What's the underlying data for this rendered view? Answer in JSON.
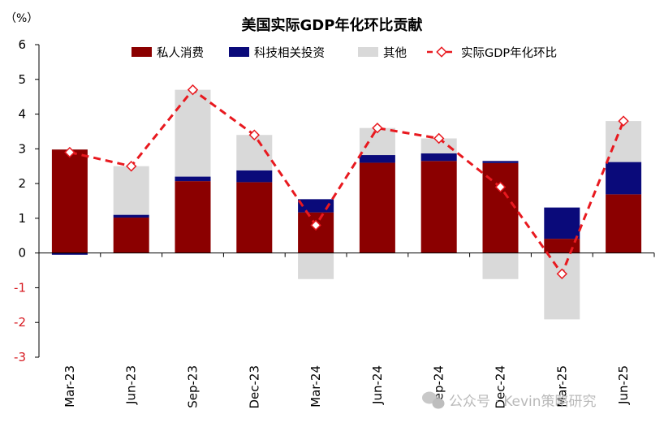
{
  "chart_data": {
    "type": "bar",
    "title": "美国实际GDP年化环比贡献",
    "unit_label": "（%）",
    "categories": [
      "Mar-23",
      "Jun-23",
      "Sep-23",
      "Dec-23",
      "Mar-24",
      "Jun-24",
      "Sep-24",
      "Dec-24",
      "Mar-25",
      "Jun-25"
    ],
    "series": [
      {
        "name": "私人消费",
        "kind": "stacked-bar",
        "color": "#8b0000",
        "values": [
          2.98,
          1.02,
          2.07,
          2.04,
          1.17,
          2.6,
          2.65,
          2.59,
          0.41,
          1.69
        ]
      },
      {
        "name": "科技相关投资",
        "kind": "stacked-bar",
        "color": "#0a0a7a",
        "values": [
          -0.05,
          0.08,
          0.13,
          0.34,
          0.38,
          0.22,
          0.22,
          0.06,
          0.9,
          0.93
        ]
      },
      {
        "name": "其他",
        "kind": "stacked-bar",
        "color": "#d9d9d9",
        "values": [
          0.0,
          1.4,
          2.5,
          1.02,
          -0.75,
          0.78,
          0.43,
          -0.75,
          -1.91,
          1.18
        ]
      },
      {
        "name": "实际GDP年化环比",
        "kind": "line",
        "color": "#e8191f",
        "values": [
          2.9,
          2.5,
          4.7,
          3.4,
          0.8,
          3.6,
          3.3,
          1.9,
          -0.6,
          3.8
        ]
      }
    ],
    "ylim": [
      -3,
      6
    ],
    "yticks": [
      6,
      5,
      4,
      3,
      2,
      1,
      0,
      -1,
      -2,
      -3
    ],
    "legend_position": "top",
    "grid": false
  },
  "watermark": {
    "icon": "wechat-icon",
    "text": "公众号 · Kevin策略研究"
  }
}
